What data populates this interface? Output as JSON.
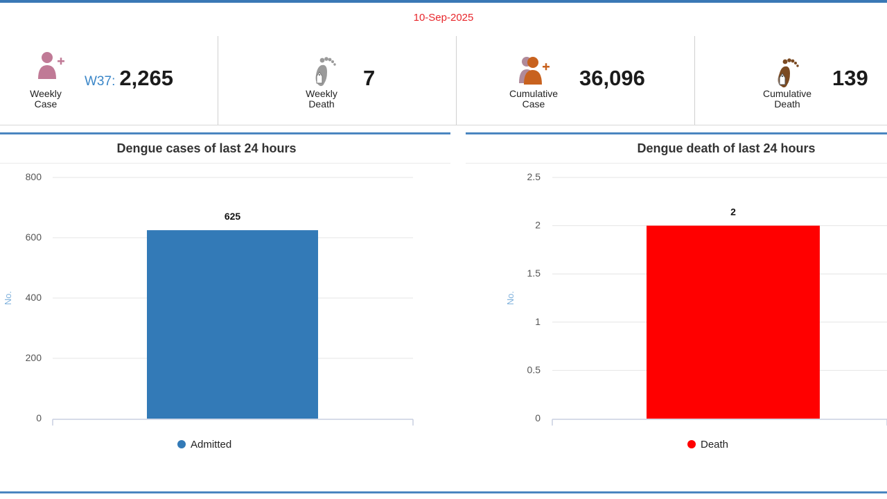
{
  "header": {
    "date": "10-Sep-2025"
  },
  "stats": [
    {
      "label_line1": "Weekly",
      "label_line2": "Case",
      "prefix": "W37:",
      "value": "2,265",
      "icon": "add-person-icon",
      "icon_color": "#c07a96"
    },
    {
      "label_line1": "Weekly",
      "label_line2": "Death",
      "value": "7",
      "icon": "footprint-tag-icon",
      "icon_color": "#9a9a9a"
    },
    {
      "label_line1": "Cumulative",
      "label_line2": "Case",
      "value": "36,096",
      "icon": "add-group-icon",
      "icon_color": "#c8621f"
    },
    {
      "label_line1": "Cumulative",
      "label_line2": "Death",
      "value": "139",
      "icon": "footprint-tag-icon",
      "icon_color": "#7a4a22"
    }
  ],
  "chart_data": [
    {
      "type": "bar",
      "title": "Dengue cases of last 24 hours",
      "ylabel": "No.",
      "ylim": [
        0,
        800
      ],
      "yticks": [
        "0",
        "200",
        "400",
        "600",
        "800"
      ],
      "tick_values": [
        0,
        200,
        400,
        600,
        800
      ],
      "series": [
        {
          "name": "Admitted",
          "values": [
            625
          ]
        }
      ],
      "data_labels": [
        "625"
      ],
      "color": "#337ab7",
      "legend": "bottom"
    },
    {
      "type": "bar",
      "title": "Dengue death of last 24 hours",
      "ylabel": "No.",
      "ylim": [
        0,
        2.5
      ],
      "yticks": [
        "0",
        "0.5",
        "1",
        "1.5",
        "2",
        "2.5"
      ],
      "tick_values": [
        0,
        0.5,
        1,
        1.5,
        2,
        2.5
      ],
      "series": [
        {
          "name": "Death",
          "values": [
            2
          ]
        }
      ],
      "data_labels": [
        "2"
      ],
      "color": "#ff0000",
      "legend": "bottom"
    }
  ]
}
